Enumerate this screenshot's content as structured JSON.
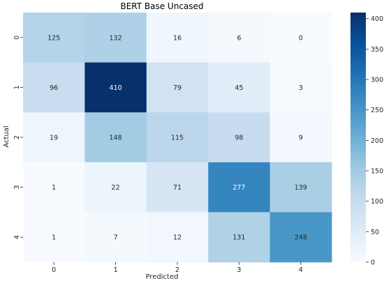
{
  "chart_data": {
    "type": "heatmap",
    "title": "BERT Base Uncased",
    "xlabel": "Predicted",
    "ylabel": "Actual",
    "x_categories": [
      "0",
      "1",
      "2",
      "3",
      "4"
    ],
    "y_categories": [
      "0",
      "1",
      "2",
      "3",
      "4"
    ],
    "values": [
      [
        125,
        132,
        16,
        6,
        0
      ],
      [
        96,
        410,
        79,
        45,
        3
      ],
      [
        19,
        148,
        115,
        98,
        9
      ],
      [
        1,
        22,
        71,
        277,
        139
      ],
      [
        1,
        7,
        12,
        131,
        248
      ]
    ],
    "colormap": "Blues",
    "color_range": [
      0,
      410
    ],
    "colorbar_ticks": [
      "0",
      "50",
      "100",
      "150",
      "200",
      "250",
      "300",
      "350",
      "400"
    ],
    "colorbar_tick_values": [
      0,
      50,
      100,
      150,
      200,
      250,
      300,
      350,
      400
    ],
    "annotations": true,
    "grid": false,
    "colorbar_position": "right"
  }
}
